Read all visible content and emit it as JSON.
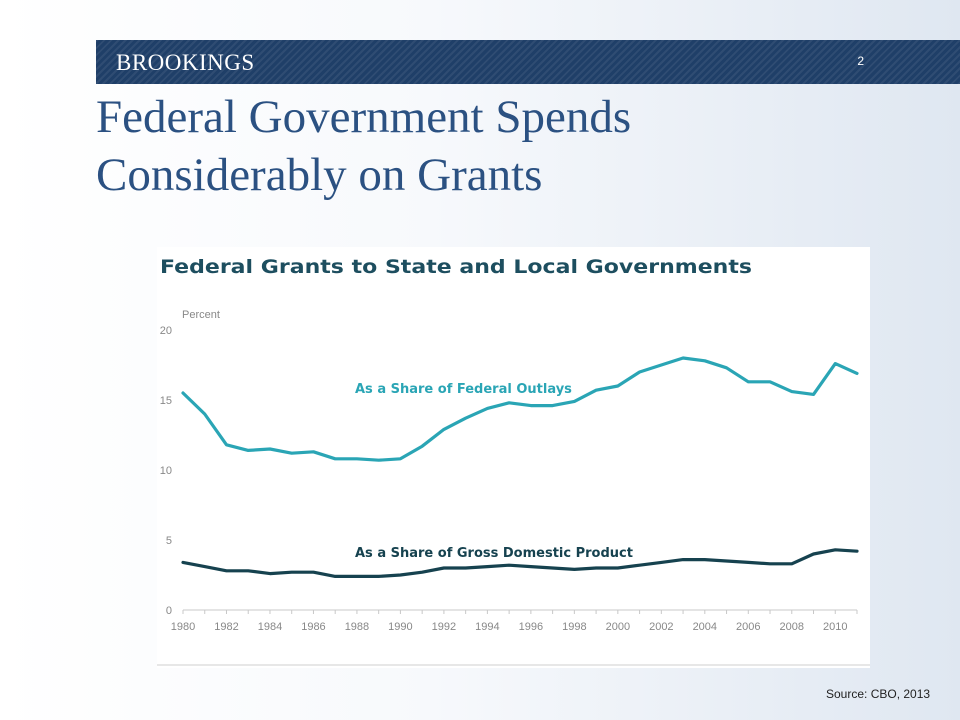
{
  "header": {
    "brand": "BROOKINGS",
    "page_number": "2"
  },
  "slide": {
    "title_line1": "Federal Government Spends",
    "title_line2": "Considerably on Grants",
    "source": "Source: CBO, 2013"
  },
  "colors": {
    "header_bar": "#1f3f68",
    "title": "#2b5182",
    "series_outlays": "#2aa5b5",
    "series_gdp": "#16424f",
    "chart_title": "#1d4e5f",
    "axis_text": "#888888"
  },
  "chart_data": {
    "type": "line",
    "title": "Federal Grants to State and Local Governments",
    "ylabel": "Percent",
    "ylim": [
      0,
      20
    ],
    "yticks": [
      "0",
      "5",
      "10",
      "15",
      "20"
    ],
    "xticks": [
      "1980",
      "1982",
      "1984",
      "1986",
      "1988",
      "1990",
      "1992",
      "1994",
      "1996",
      "1998",
      "2000",
      "2002",
      "2004",
      "2006",
      "2008",
      "2010"
    ],
    "xlim": [
      1980,
      2011
    ],
    "grid": false,
    "x": [
      1980,
      1981,
      1982,
      1983,
      1984,
      1985,
      1986,
      1987,
      1988,
      1989,
      1990,
      1991,
      1992,
      1993,
      1994,
      1995,
      1996,
      1997,
      1998,
      1999,
      2000,
      2001,
      2002,
      2003,
      2004,
      2005,
      2006,
      2007,
      2008,
      2009,
      2010,
      2011
    ],
    "series": [
      {
        "name": "As a Share of Federal Outlays",
        "values": [
          15.5,
          14.0,
          11.8,
          11.4,
          11.5,
          11.2,
          11.3,
          10.8,
          10.8,
          10.7,
          10.8,
          11.7,
          12.9,
          13.7,
          14.4,
          14.8,
          14.6,
          14.6,
          14.9,
          15.7,
          16.0,
          17.0,
          17.5,
          18.0,
          17.8,
          17.3,
          16.3,
          16.3,
          15.6,
          15.4,
          17.6,
          16.9
        ]
      },
      {
        "name": "As a Share of Gross Domestic Product",
        "values": [
          3.4,
          3.1,
          2.8,
          2.8,
          2.6,
          2.7,
          2.7,
          2.4,
          2.4,
          2.4,
          2.5,
          2.7,
          3.0,
          3.0,
          3.1,
          3.2,
          3.1,
          3.0,
          2.9,
          3.0,
          3.0,
          3.2,
          3.4,
          3.6,
          3.6,
          3.5,
          3.4,
          3.3,
          3.3,
          4.0,
          4.3,
          4.2
        ]
      }
    ]
  }
}
